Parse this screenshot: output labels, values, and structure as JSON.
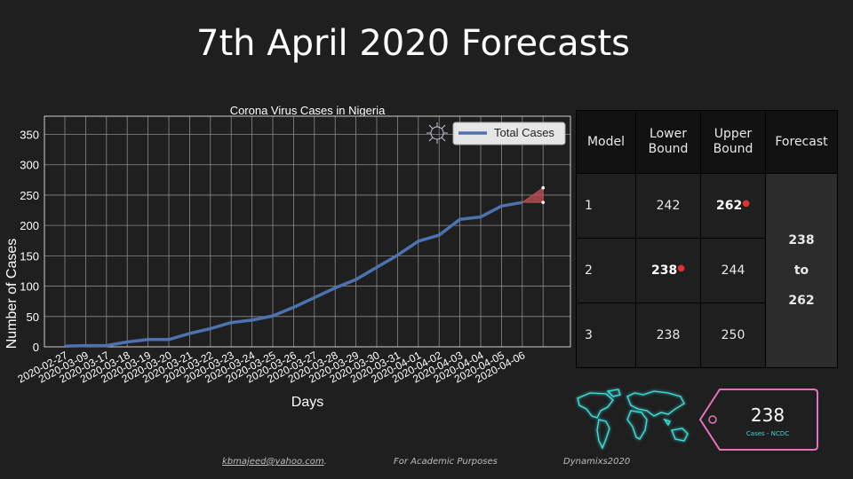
{
  "page_title": "7th April 2020 Forecasts",
  "chart_data": {
    "type": "line",
    "title": "Corona Virus Cases in Nigeria",
    "xlabel": "Days",
    "ylabel": "Number of Cases",
    "ylim": [
      0,
      380
    ],
    "yticks": [
      0,
      50,
      100,
      150,
      200,
      250,
      300,
      350
    ],
    "grid": true,
    "legend_position": "top-right",
    "categories": [
      "2020-02-27",
      "2020-03-09",
      "2020-03-17",
      "2020-03-18",
      "2020-03-19",
      "2020-03-20",
      "2020-03-21",
      "2020-03-22",
      "2020-03-23",
      "2020-03-24",
      "2020-03-25",
      "2020-03-26",
      "2020-03-27",
      "2020-03-28",
      "2020-03-29",
      "2020-03-30",
      "2020-03-31",
      "2020-04-01",
      "2020-04-02",
      "2020-04-03",
      "2020-04-04",
      "2020-04-05",
      "2020-04-06"
    ],
    "series": [
      {
        "name": "Total Cases",
        "color": "#4c72b0",
        "values": [
          1,
          2,
          2,
          8,
          12,
          12,
          22,
          30,
          40,
          44,
          51,
          65,
          81,
          97,
          111,
          131,
          151,
          174,
          184,
          210,
          214,
          232,
          238
        ]
      }
    ],
    "forecast_range": {
      "low": 238,
      "high": 262,
      "color": "#c0505a"
    }
  },
  "table": {
    "headers": [
      "Model",
      "Lower\nBound",
      "Upper\nBound",
      "Forecast"
    ],
    "rows": [
      {
        "model": "1",
        "lower": "242",
        "upper": "262"
      },
      {
        "model": "2",
        "lower": "238",
        "upper": "244"
      },
      {
        "model": "3",
        "lower": "238",
        "upper": "250"
      }
    ],
    "forecast": {
      "low": "238",
      "mid": "to",
      "high": "262"
    }
  },
  "tag": {
    "value": "238",
    "source": "Cases - NCDC"
  },
  "footer": {
    "email": "kbmajeed@yahoo.com",
    "note": "For Academic Purposes",
    "brand": "Dynamixs2020"
  },
  "colors": {
    "background": "#1f1f1f",
    "line": "#4c72b0",
    "tag_border": "#e870c0",
    "map_glow": "#3fe0e0"
  }
}
